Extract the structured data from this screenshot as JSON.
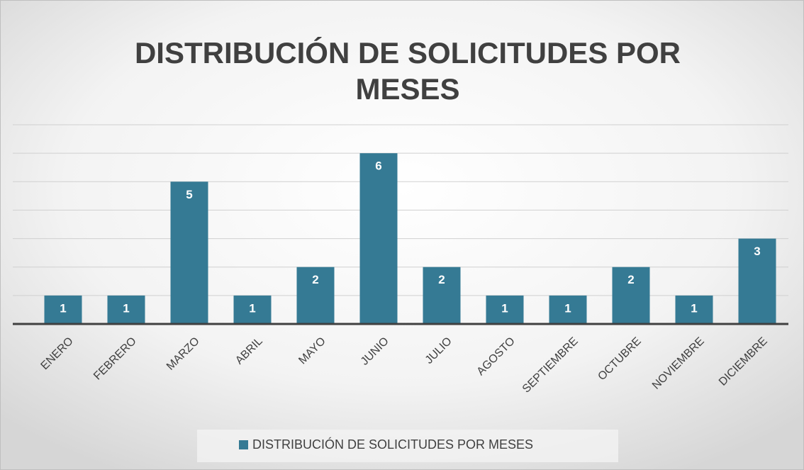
{
  "chart_data": {
    "type": "bar",
    "title": "DISTRIBUCIÓN DE SOLICITUDES POR MESES",
    "categories": [
      "ENERO",
      "FEBRERO",
      "MARZO",
      "ABRIL",
      "MAYO",
      "JUNIO",
      "JULIO",
      "AGOSTO",
      "SEPTIEMBRE",
      "OCTUBRE",
      "NOVIEMBRE",
      "DICIEMBRE"
    ],
    "series": [
      {
        "name": "DISTRIBUCIÓN DE SOLICITUDES POR MESES",
        "color": "#357a94",
        "values": [
          1,
          1,
          5,
          1,
          2,
          6,
          2,
          1,
          1,
          2,
          1,
          3
        ]
      }
    ],
    "ylim": [
      0,
      7
    ],
    "yticks": [
      0,
      1,
      2,
      3,
      4,
      5,
      6,
      7
    ],
    "grid": true,
    "legend": "bottom"
  }
}
